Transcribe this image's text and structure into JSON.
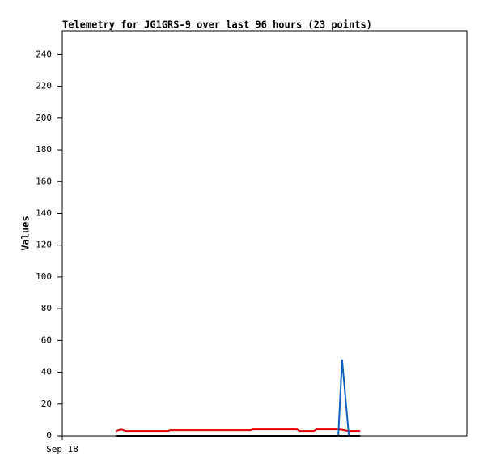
{
  "chart_data": {
    "type": "line",
    "title": "Telemetry for JG1GRS-9 over last 96 hours (23 points)",
    "y_label": "Values",
    "xlim": [
      0,
      96
    ],
    "xticks": [
      {
        "value": 0,
        "label": "Sep 18"
      }
    ],
    "ylim": [
      0,
      255
    ],
    "yticks": [
      0,
      20,
      40,
      60,
      80,
      100,
      120,
      140,
      160,
      180,
      200,
      220,
      240
    ],
    "series": [
      {
        "color": "#e00000",
        "x": [
          12.7,
          14.0,
          15.0,
          25.2,
          25.5,
          44.7,
          45.3,
          55.7,
          56.3,
          59.7,
          60.3,
          65.9,
          67.8,
          70.7
        ],
        "values": [
          3,
          4,
          3,
          3,
          3.5,
          3.5,
          4,
          4,
          3,
          3,
          4,
          4,
          3,
          3
        ]
      },
      {
        "color": "#1060c0",
        "x": [
          65.5,
          66.4,
          68.0
        ],
        "values": [
          0,
          48,
          0
        ]
      },
      {
        "color": "#000000",
        "x": [
          12.7,
          70.7
        ],
        "values": [
          0,
          0
        ]
      }
    ]
  }
}
